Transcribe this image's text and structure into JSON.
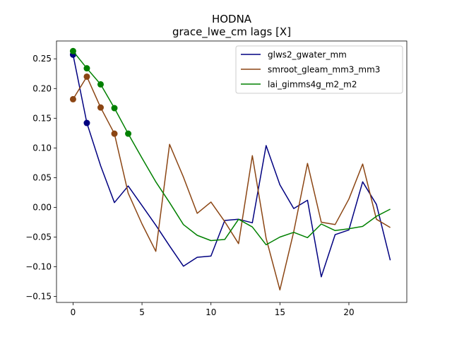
{
  "chart_data": {
    "type": "line",
    "title": "HODNA",
    "subtitle": "grace_lwe_cm lags [X]",
    "xlabel": "",
    "ylabel": "",
    "xlim": [
      -1.2,
      24.2
    ],
    "ylim": [
      -0.16,
      0.28
    ],
    "xticks": [
      0,
      5,
      10,
      15,
      20
    ],
    "yticks": [
      -0.15,
      -0.1,
      -0.05,
      0.0,
      0.05,
      0.1,
      0.15,
      0.2,
      0.25
    ],
    "ytick_labels": [
      "−0.15",
      "−0.10",
      "−0.05",
      "0.00",
      "0.05",
      "0.10",
      "0.15",
      "0.20",
      "0.25"
    ],
    "grid": false,
    "legend_position": "top-right",
    "x": [
      0,
      1,
      2,
      3,
      4,
      5,
      6,
      7,
      8,
      9,
      10,
      11,
      12,
      13,
      14,
      15,
      16,
      17,
      18,
      19,
      20,
      21,
      22,
      23
    ],
    "series": [
      {
        "name": "glws2_gwater_mm",
        "color": "#000080",
        "values": [
          0.257,
          0.142,
          0.07,
          0.008,
          0.036,
          0.003,
          -0.03,
          -0.065,
          -0.099,
          -0.084,
          -0.082,
          -0.022,
          -0.02,
          -0.026,
          0.104,
          0.038,
          -0.002,
          0.012,
          -0.117,
          -0.046,
          -0.038,
          0.043,
          0.005,
          -0.089
        ],
        "markers": [
          0,
          1
        ]
      },
      {
        "name": "smroot_gleam_mm3_mm3",
        "color": "#8B4513",
        "values": [
          0.182,
          0.22,
          0.168,
          0.124,
          0.024,
          -0.028,
          -0.074,
          0.106,
          0.051,
          -0.01,
          0.009,
          -0.024,
          -0.061,
          0.087,
          -0.052,
          -0.139,
          -0.041,
          0.074,
          -0.025,
          -0.029,
          0.014,
          0.073,
          -0.02,
          -0.034
        ],
        "markers": [
          0,
          1,
          2,
          3
        ]
      },
      {
        "name": "lai_gimms4g_m2_m2",
        "color": "#008000",
        "values": [
          0.263,
          0.234,
          0.207,
          0.167,
          0.124,
          0.083,
          0.043,
          0.008,
          -0.029,
          -0.047,
          -0.056,
          -0.054,
          -0.02,
          -0.033,
          -0.063,
          -0.05,
          -0.042,
          -0.051,
          -0.028,
          -0.039,
          -0.036,
          -0.032,
          -0.015,
          -0.003
        ],
        "markers": [
          0,
          1,
          2,
          3,
          4
        ]
      }
    ]
  }
}
